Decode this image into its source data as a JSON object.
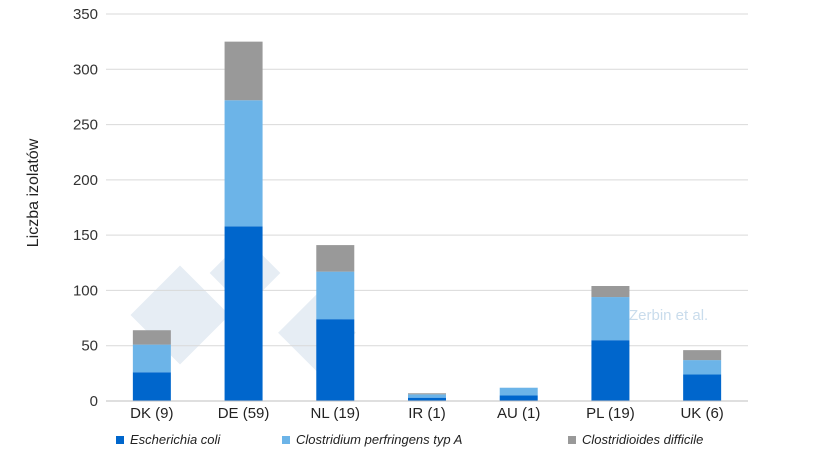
{
  "chart_data": {
    "type": "bar",
    "stacked": true,
    "categories": [
      "DK (9)",
      "DE (59)",
      "NL (19)",
      "IR (1)",
      "AU (1)",
      "PL (19)",
      "UK (6)"
    ],
    "series": [
      {
        "name": "Escherichia coli",
        "color": "#0066cc",
        "values": [
          26,
          158,
          74,
          3,
          5,
          55,
          24
        ]
      },
      {
        "name": "Clostridium perfringens typ A",
        "color": "#6cb4e8",
        "values": [
          25,
          114,
          43,
          3,
          7,
          39,
          13
        ]
      },
      {
        "name": "Clostridioides difficile",
        "color": "#999999",
        "values": [
          13,
          53,
          24,
          1,
          0,
          10,
          9
        ]
      }
    ],
    "ylabel": "Liczba izolatów",
    "ylim": [
      0,
      350
    ],
    "yticks": [
      0,
      50,
      100,
      150,
      200,
      250,
      300,
      350
    ],
    "grid": true,
    "legend": "bottom",
    "annotation": "Zerbin et al."
  }
}
